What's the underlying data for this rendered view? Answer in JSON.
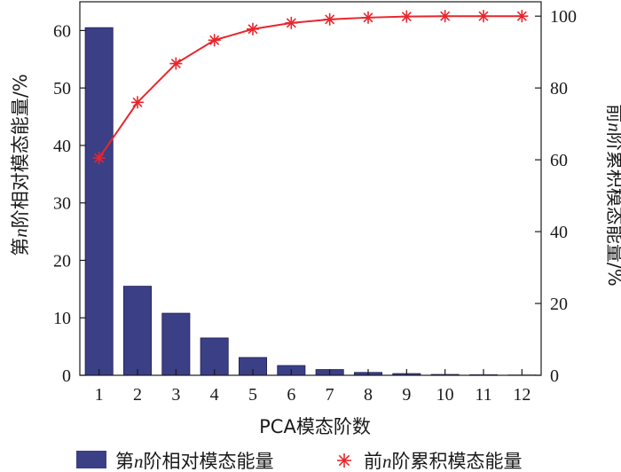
{
  "chart_data": {
    "type": "bar",
    "categories": [
      "1",
      "2",
      "3",
      "4",
      "5",
      "6",
      "7",
      "8",
      "9",
      "10",
      "11",
      "12"
    ],
    "series": [
      {
        "name": "第n阶相对模态能量",
        "type": "bar",
        "axis": "left",
        "values": [
          60.5,
          15.5,
          10.8,
          6.5,
          3.1,
          1.7,
          1.0,
          0.5,
          0.3,
          0.15,
          0.1,
          0.05
        ],
        "color": "#3b3f86"
      },
      {
        "name": "前n阶累积模态能量",
        "type": "line",
        "axis": "right",
        "marker": "asterisk",
        "values": [
          60.5,
          76.0,
          86.8,
          93.3,
          96.4,
          98.1,
          99.1,
          99.6,
          99.9,
          100.0,
          100.0,
          100.0
        ],
        "color": "#e8262c"
      }
    ],
    "xlabel": "PCA模态阶数",
    "ylabel_left": "第n阶相对模态能量/%",
    "ylabel_right": "前n阶累积模态能量/%",
    "ylim_left": [
      0,
      65
    ],
    "ylim_right": [
      0,
      104
    ],
    "yticks_left": [
      "0",
      "10",
      "20",
      "30",
      "40",
      "50",
      "60"
    ],
    "yticks_right": [
      "0",
      "20",
      "40",
      "60",
      "80",
      "100"
    ],
    "legend_position": "bottom",
    "grid": false
  }
}
